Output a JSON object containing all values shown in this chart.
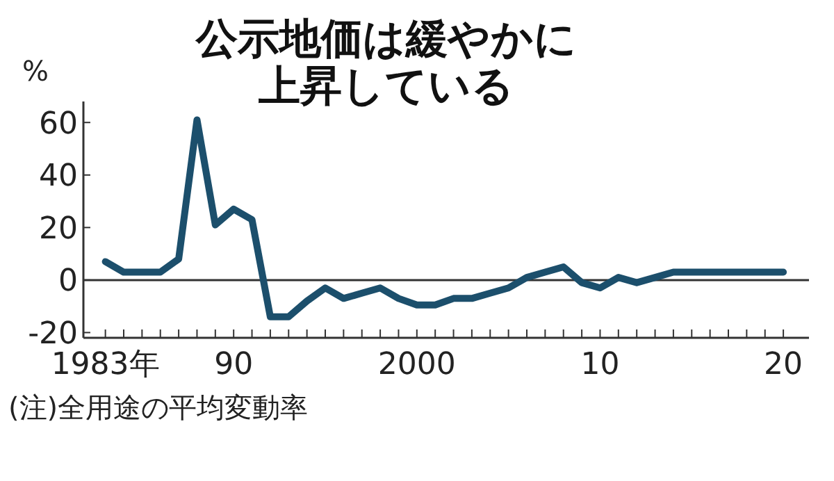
{
  "chart_data": {
    "type": "line",
    "title": "公示地価は緩やかに上昇している",
    "ylabel": "%",
    "annotations": [
      "(注)全用途の平均変動率"
    ],
    "x": [
      1983,
      1984,
      1985,
      1986,
      1987,
      1988,
      1989,
      1990,
      1991,
      1992,
      1993,
      1994,
      1995,
      1996,
      1997,
      1998,
      1999,
      2000,
      2001,
      2002,
      2003,
      2004,
      2005,
      2006,
      2007,
      2008,
      2009,
      2010,
      2011,
      2012,
      2013,
      2014,
      2015,
      2016,
      2017,
      2018,
      2019,
      2020
    ],
    "series": [
      {
        "color": "#1c4f6c",
        "values": [
          7,
          3,
          3,
          3,
          8,
          61,
          21,
          27,
          23,
          -14,
          -14,
          -8,
          -3,
          -7,
          -5,
          -3,
          -7,
          -9.5,
          -9.5,
          -7,
          -7,
          -5,
          -3,
          1,
          3,
          5,
          -1,
          -3,
          1,
          -1,
          1,
          3,
          3,
          3,
          3,
          3,
          3,
          3
        ]
      }
    ],
    "xlim": [
      1981.8,
      2021.4
    ],
    "ylim": [
      -22,
      68
    ],
    "xticks": [
      {
        "value": 1983,
        "label": "1983年"
      },
      {
        "value": 1984,
        "label": null
      },
      {
        "value": 1985,
        "label": null
      },
      {
        "value": 1986,
        "label": null
      },
      {
        "value": 1987,
        "label": null
      },
      {
        "value": 1988,
        "label": null
      },
      {
        "value": 1989,
        "label": null
      },
      {
        "value": 1990,
        "label": "90"
      },
      {
        "value": 1991,
        "label": null
      },
      {
        "value": 1992,
        "label": null
      },
      {
        "value": 1993,
        "label": null
      },
      {
        "value": 1994,
        "label": null
      },
      {
        "value": 1995,
        "label": null
      },
      {
        "value": 1996,
        "label": null
      },
      {
        "value": 1997,
        "label": null
      },
      {
        "value": 1998,
        "label": null
      },
      {
        "value": 1999,
        "label": null
      },
      {
        "value": 2000,
        "label": "2000"
      },
      {
        "value": 2001,
        "label": null
      },
      {
        "value": 2002,
        "label": null
      },
      {
        "value": 2003,
        "label": null
      },
      {
        "value": 2004,
        "label": null
      },
      {
        "value": 2005,
        "label": null
      },
      {
        "value": 2006,
        "label": null
      },
      {
        "value": 2007,
        "label": null
      },
      {
        "value": 2008,
        "label": null
      },
      {
        "value": 2009,
        "label": null
      },
      {
        "value": 2010,
        "label": "10"
      },
      {
        "value": 2011,
        "label": null
      },
      {
        "value": 2012,
        "label": null
      },
      {
        "value": 2013,
        "label": null
      },
      {
        "value": 2014,
        "label": null
      },
      {
        "value": 2015,
        "label": null
      },
      {
        "value": 2016,
        "label": null
      },
      {
        "value": 2017,
        "label": null
      },
      {
        "value": 2018,
        "label": null
      },
      {
        "value": 2019,
        "label": null
      },
      {
        "value": 2020,
        "label": "20"
      }
    ],
    "yticks": [
      -20,
      0,
      20,
      40,
      60
    ],
    "ref_lines": [
      {
        "axis": "y",
        "value": 0,
        "color": "#333333"
      }
    ],
    "grid": false,
    "marker": "none",
    "line_style": "solid"
  }
}
